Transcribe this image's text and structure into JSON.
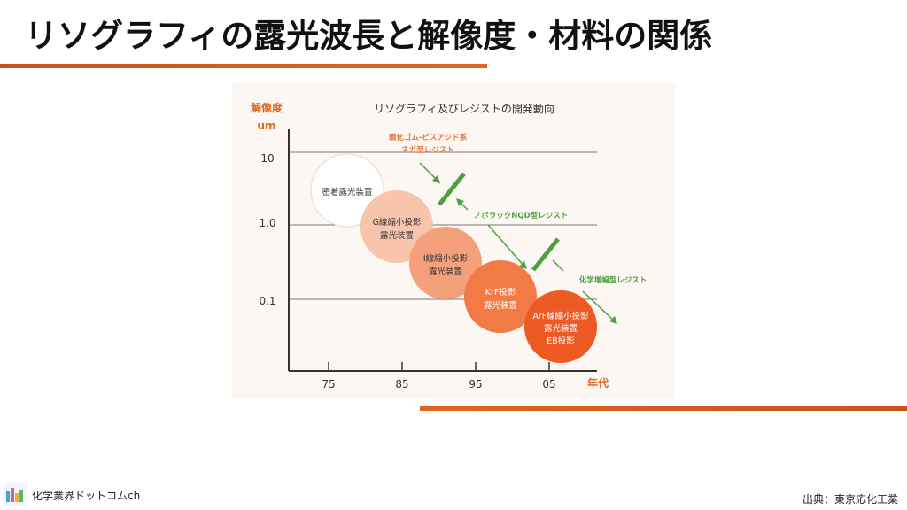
{
  "slide": {
    "title": "リソグラフィの露光波長と解像度・材料の関係",
    "brand": "化学業界ドットコムch",
    "source": "出典：東京応化工業"
  },
  "figure": {
    "title": "リソグラフィ及びレジストの開発動向",
    "y_label_line1": "解像度",
    "y_label_line2": "um",
    "x_label": "年代",
    "y_ticks": [
      "10",
      "1.0",
      "0.1"
    ],
    "x_ticks": [
      "75",
      "85",
      "95",
      "05"
    ],
    "circles": [
      {
        "lines": [
          "密着露光装置"
        ],
        "color": "#ffffff"
      },
      {
        "lines": [
          "G線縮小投影",
          "露光装置"
        ],
        "color": "#f8c4ac"
      },
      {
        "lines": [
          "I線縮小投影",
          "露光装置"
        ],
        "color": "#f4a07a"
      },
      {
        "lines": [
          "KrF投影",
          "露光装置"
        ],
        "color": "#f27a45"
      },
      {
        "lines": [
          "ArF線縮小投影",
          "露光装置",
          "EB投影"
        ],
        "color": "#ee5a24"
      }
    ],
    "resists": [
      {
        "lines": [
          "環化ゴム-ビスアジド系",
          "ネガ型レジスト"
        ],
        "color": "#e8763e"
      },
      {
        "lines": [
          "ノボラックNQD型レジスト"
        ],
        "color": "#4ea03f"
      },
      {
        "lines": [
          "化学増幅型レジスト"
        ],
        "color": "#4ea03f"
      }
    ],
    "colors": {
      "orange": "#e0661f",
      "green": "#4ea03f",
      "axis": "#333333",
      "grid": "#777777"
    }
  }
}
